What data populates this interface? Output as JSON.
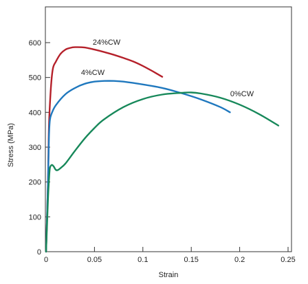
{
  "chart_data": {
    "type": "line",
    "title": "",
    "xlabel": "Strain",
    "ylabel": "Stress (MPa)",
    "xlim": [
      0,
      0.25
    ],
    "ylim": [
      0,
      600
    ],
    "xticks": [
      "0",
      "0.05",
      "0.1",
      "0.15",
      "0.2",
      "0.25"
    ],
    "yticks": [
      "0",
      "100",
      "200",
      "300",
      "400",
      "500",
      "600"
    ],
    "grid": false,
    "legend": "none (labels placed next to curves)",
    "series": [
      {
        "name": "24%CW",
        "color": "#b5202a",
        "points": [
          [
            0,
            0
          ],
          [
            0.002,
            200
          ],
          [
            0.003,
            360
          ],
          [
            0.005,
            470
          ],
          [
            0.007,
            525
          ],
          [
            0.01,
            545
          ],
          [
            0.015,
            568
          ],
          [
            0.02,
            580
          ],
          [
            0.025,
            585
          ],
          [
            0.03,
            587
          ],
          [
            0.04,
            586
          ],
          [
            0.05,
            580
          ],
          [
            0.06,
            573
          ],
          [
            0.07,
            565
          ],
          [
            0.08,
            556
          ],
          [
            0.09,
            546
          ],
          [
            0.1,
            533
          ],
          [
            0.11,
            518
          ],
          [
            0.12,
            502
          ]
        ]
      },
      {
        "name": "4%CW",
        "color": "#1f78be",
        "points": [
          [
            0,
            0
          ],
          [
            0.002,
            200
          ],
          [
            0.003,
            330
          ],
          [
            0.004,
            378
          ],
          [
            0.006,
            398
          ],
          [
            0.01,
            420
          ],
          [
            0.02,
            452
          ],
          [
            0.03,
            470
          ],
          [
            0.04,
            482
          ],
          [
            0.05,
            488
          ],
          [
            0.06,
            490
          ],
          [
            0.07,
            490
          ],
          [
            0.08,
            488
          ],
          [
            0.1,
            480
          ],
          [
            0.12,
            470
          ],
          [
            0.14,
            455
          ],
          [
            0.16,
            437
          ],
          [
            0.18,
            415
          ],
          [
            0.19,
            400
          ]
        ]
      },
      {
        "name": "0%CW",
        "color": "#17885a",
        "points": [
          [
            0,
            0
          ],
          [
            0.002,
            150
          ],
          [
            0.003,
            205
          ],
          [
            0.004,
            240
          ],
          [
            0.006,
            249
          ],
          [
            0.008,
            244
          ],
          [
            0.01,
            235
          ],
          [
            0.012,
            234
          ],
          [
            0.015,
            240
          ],
          [
            0.02,
            253
          ],
          [
            0.03,
            290
          ],
          [
            0.04,
            325
          ],
          [
            0.05,
            355
          ],
          [
            0.06,
            380
          ],
          [
            0.08,
            415
          ],
          [
            0.1,
            438
          ],
          [
            0.12,
            451
          ],
          [
            0.14,
            456
          ],
          [
            0.15,
            457
          ],
          [
            0.16,
            454
          ],
          [
            0.18,
            442
          ],
          [
            0.2,
            422
          ],
          [
            0.22,
            395
          ],
          [
            0.24,
            362
          ]
        ]
      }
    ]
  }
}
